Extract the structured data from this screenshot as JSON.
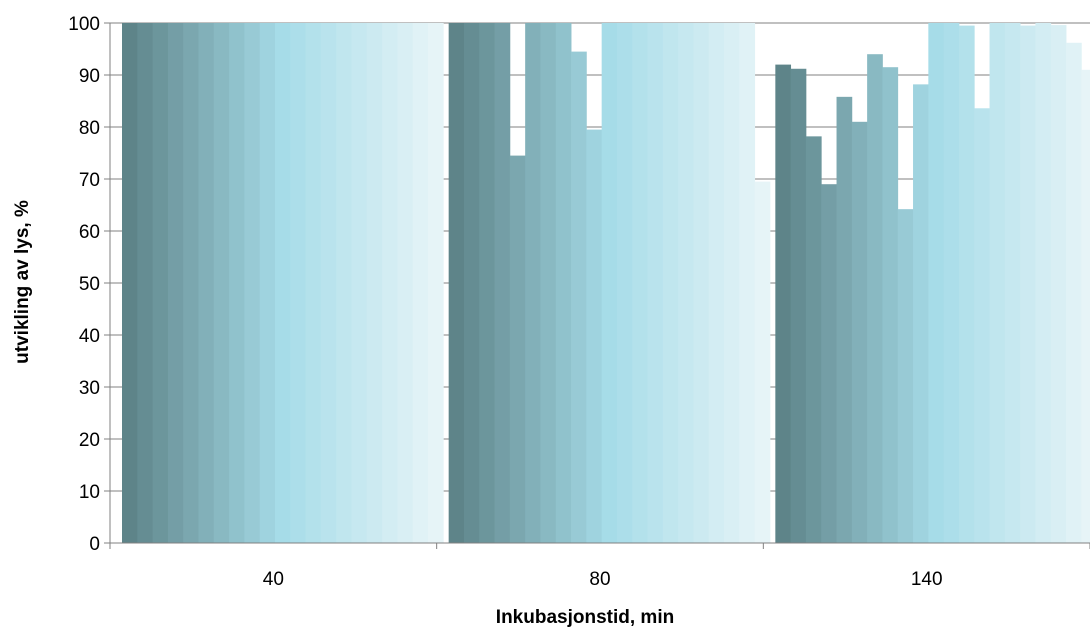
{
  "chart_data": {
    "type": "bar",
    "title": "",
    "xlabel": "Inkubasjonstid, min",
    "ylabel": "utvikling av lys, %",
    "ylim": [
      0,
      100
    ],
    "yticks": [
      "0",
      "10",
      "20",
      "30",
      "40",
      "50",
      "60",
      "70",
      "80",
      "90",
      "100"
    ],
    "categories": [
      "40",
      "80",
      "140"
    ],
    "grid": "horizontal",
    "legend": "none",
    "colors": {
      "start": "#5e8489",
      "mid": "#a6dce8",
      "end": "#e6f4f7",
      "gridline": "#808080",
      "axis": "#808080"
    },
    "series_count": 21,
    "groups": [
      {
        "category": "40",
        "values": [
          100,
          100,
          100,
          100,
          100,
          100,
          100,
          100,
          100,
          100,
          100,
          100,
          100,
          100,
          100,
          100,
          100,
          100,
          100,
          100,
          100
        ]
      },
      {
        "category": "80",
        "values": [
          100,
          100,
          100,
          100,
          74.5,
          100,
          100,
          100,
          94.5,
          79.5,
          100,
          100,
          100,
          100,
          100,
          100,
          100,
          100,
          100,
          100,
          69.5
        ]
      },
      {
        "category": "140",
        "values": [
          92,
          91.2,
          78.2,
          69,
          85.8,
          81,
          94,
          91.5,
          64.2,
          88.2,
          100,
          100,
          99.5,
          83.6,
          100,
          100,
          99.5,
          100,
          99.6,
          96.2,
          91
        ]
      }
    ]
  }
}
